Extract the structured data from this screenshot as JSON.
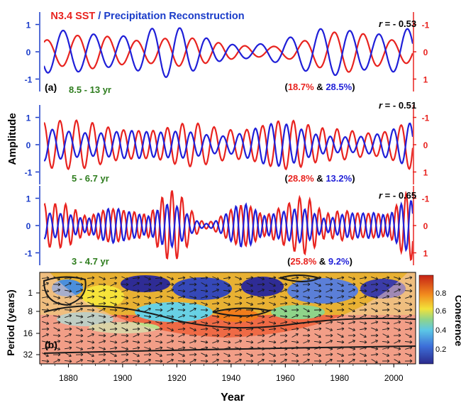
{
  "chart_data": [
    {
      "type": "line",
      "panel_label": "(a)",
      "title": {
        "series_a": "N3.4 SST",
        "separator": " / ",
        "series_b": "Precipitation Reconstruction"
      },
      "ylabel": "Amplitude",
      "xlim": [
        1871,
        2007
      ],
      "subplots": [
        {
          "band": "8.5 - 13 yr",
          "r_prefix": "r",
          "r_value": "= - 0.53",
          "variance_sst": "18.7%",
          "variance_precip": "28.5%",
          "ylim_left": [
            -1.3,
            1.3
          ],
          "left_ticks": [
            "1",
            "0",
            "-1"
          ],
          "right_ticks": [
            "-1",
            "0",
            "1"
          ],
          "periods": [
            10.5,
            11.8,
            9.3
          ],
          "series": [
            {
              "name": "N3.4 SST",
              "color": "#e8231f",
              "amplitude": 0.55,
              "phase": 0.4
            },
            {
              "name": "Precipitation Reconstruction",
              "color": "#1f1fd8",
              "amplitude": 0.78,
              "phase": 3.3
            }
          ]
        },
        {
          "band": "5 - 6.7 yr",
          "r_prefix": "r",
          "r_value": "= - 0.51",
          "variance_sst": "28.8%",
          "variance_precip": "13.2%",
          "ylim_left": [
            -1.3,
            1.3
          ],
          "left_ticks": [
            "1",
            "0",
            "-1"
          ],
          "right_ticks": [
            "-1",
            "0",
            "1"
          ],
          "periods": [
            5.7,
            6.3,
            5.2
          ],
          "series": [
            {
              "name": "N3.4 SST",
              "color": "#e8231f",
              "amplitude": 0.85,
              "phase": 1.1
            },
            {
              "name": "Precipitation Reconstruction",
              "color": "#1f1fd8",
              "amplitude": 0.6,
              "phase": 4.0
            }
          ]
        },
        {
          "band": "3 - 4.7 yr",
          "r_prefix": "r",
          "r_value": "= - 0.65",
          "variance_sst": "25.8%",
          "variance_precip": "9.2%",
          "ylim_left": [
            -1.3,
            1.3
          ],
          "left_ticks": [
            "1",
            "0",
            "-1"
          ],
          "right_ticks": [
            "-1",
            "0",
            "1"
          ],
          "periods": [
            3.6,
            4.3,
            3.2
          ],
          "series": [
            {
              "name": "N3.4 SST",
              "color": "#e8231f",
              "amplitude": 0.8,
              "phase": 0.7
            },
            {
              "name": "Precipitation Reconstruction",
              "color": "#1f1fd8",
              "amplitude": 0.6,
              "phase": 3.8
            }
          ]
        }
      ]
    },
    {
      "type": "heatmap",
      "panel_label": "(b)",
      "xlabel": "Year",
      "ylabel": "Period (years)",
      "x_ticks": [
        1880,
        1900,
        1920,
        1940,
        1960,
        1980,
        2000
      ],
      "y_ticks": [
        "1",
        "8",
        "16",
        "32"
      ],
      "colorbar": {
        "label": "Coherence",
        "ticks": [
          "0.8",
          "0.6",
          "0.4",
          "0.2"
        ]
      },
      "xlim": [
        1871,
        2007
      ]
    }
  ]
}
